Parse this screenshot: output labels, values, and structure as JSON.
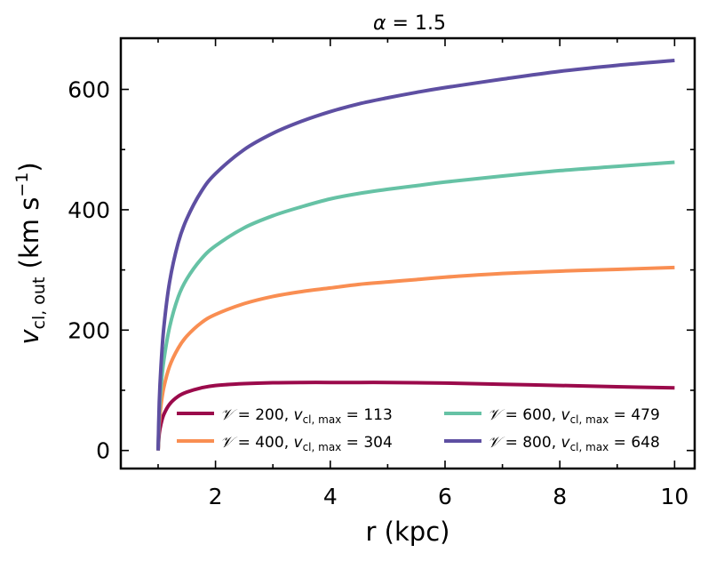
{
  "chart_data": {
    "type": "line",
    "title_symbol": "α",
    "title_value": "1.5",
    "xlabel": "r (kpc)",
    "ylabel_symbol": "v",
    "ylabel_sub": "cl, out",
    "ylabel_units_open": "(km s",
    "ylabel_units_exp": "−1",
    "ylabel_units_close": ")",
    "xlim": [
      0.35,
      10.35
    ],
    "ylim": [
      -30,
      685
    ],
    "xticks": [
      2,
      4,
      6,
      8,
      10
    ],
    "yticks": [
      0,
      200,
      400,
      600
    ],
    "legend_position": "lower-right",
    "series": [
      {
        "name": "V=200",
        "V": "200",
        "vmax": "113",
        "color": "#9b0a4b",
        "x": [
          1.0,
          1.02,
          1.05,
          1.1,
          1.2,
          1.35,
          1.5,
          1.75,
          2.0,
          2.5,
          3.0,
          3.5,
          4.0,
          4.5,
          5.0,
          5.5,
          6.0,
          7.0,
          8.0,
          9.0,
          10.0
        ],
        "y": [
          0,
          28,
          44,
          60,
          77,
          90,
          97,
          104,
          108,
          111,
          112.5,
          113,
          113,
          113,
          113,
          112.5,
          112,
          110,
          108,
          106,
          104
        ]
      },
      {
        "name": "V=400",
        "V": "400",
        "vmax": "304",
        "color": "#f98e52",
        "x": [
          1.0,
          1.02,
          1.05,
          1.1,
          1.2,
          1.35,
          1.5,
          1.75,
          2.0,
          2.5,
          3.0,
          3.5,
          4.0,
          4.5,
          5.0,
          5.5,
          6.0,
          7.0,
          8.0,
          9.0,
          10.0
        ],
        "y": [
          0,
          45,
          75,
          105,
          140,
          170,
          190,
          212,
          226,
          244,
          256,
          264,
          270,
          276,
          280,
          284,
          288,
          294,
          298,
          301,
          304
        ]
      },
      {
        "name": "V=600",
        "V": "600",
        "vmax": "479",
        "color": "#66c2a5",
        "x": [
          1.0,
          1.02,
          1.05,
          1.1,
          1.2,
          1.35,
          1.5,
          1.75,
          2.0,
          2.5,
          3.0,
          3.5,
          4.0,
          4.5,
          5.0,
          5.5,
          6.0,
          7.0,
          8.0,
          9.0,
          10.0
        ],
        "y": [
          0,
          60,
          105,
          150,
          205,
          255,
          285,
          318,
          340,
          370,
          390,
          405,
          418,
          427,
          434,
          440,
          446,
          456,
          465,
          472,
          479
        ]
      },
      {
        "name": "V=800",
        "V": "800",
        "vmax": "648",
        "color": "#5e4fa2",
        "x": [
          1.0,
          1.02,
          1.05,
          1.1,
          1.2,
          1.35,
          1.5,
          1.75,
          2.0,
          2.5,
          3.0,
          3.5,
          4.0,
          4.5,
          5.0,
          5.5,
          6.0,
          7.0,
          8.0,
          9.0,
          10.0
        ],
        "y": [
          0,
          80,
          140,
          205,
          280,
          345,
          385,
          430,
          460,
          500,
          527,
          547,
          563,
          576,
          586,
          595,
          603,
          617,
          630,
          640,
          648
        ]
      }
    ]
  }
}
